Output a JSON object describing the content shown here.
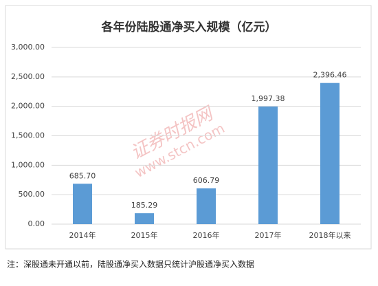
{
  "chart_data": {
    "type": "bar",
    "title": "各年份陆股通净买入规模（亿元）",
    "categories": [
      "2014年",
      "2015年",
      "2016年",
      "2017年",
      "2018年以来"
    ],
    "values": [
      685.7,
      185.29,
      606.79,
      1997.38,
      2396.46
    ],
    "value_labels": [
      "685.70",
      "185.29",
      "606.79",
      "1,997.38",
      "2,396.46"
    ],
    "color": "#5b9bd5",
    "ylim": [
      0,
      3000
    ],
    "yticks": [
      {
        "value": 0,
        "label": "0.00"
      },
      {
        "value": 500,
        "label": "500.00"
      },
      {
        "value": 1000,
        "label": "1,000.00"
      },
      {
        "value": 1500,
        "label": "1,500.00"
      },
      {
        "value": 2000,
        "label": "2,000.00"
      },
      {
        "value": 2500,
        "label": "2,500.00"
      },
      {
        "value": 3000,
        "label": "3,000.00"
      }
    ],
    "grid": true
  },
  "watermark": [
    "证券时报网",
    "www.stcn.com"
  ],
  "note": "注：深股通未开通以前，陆股通净买入数据只统计沪股通净买入数据"
}
